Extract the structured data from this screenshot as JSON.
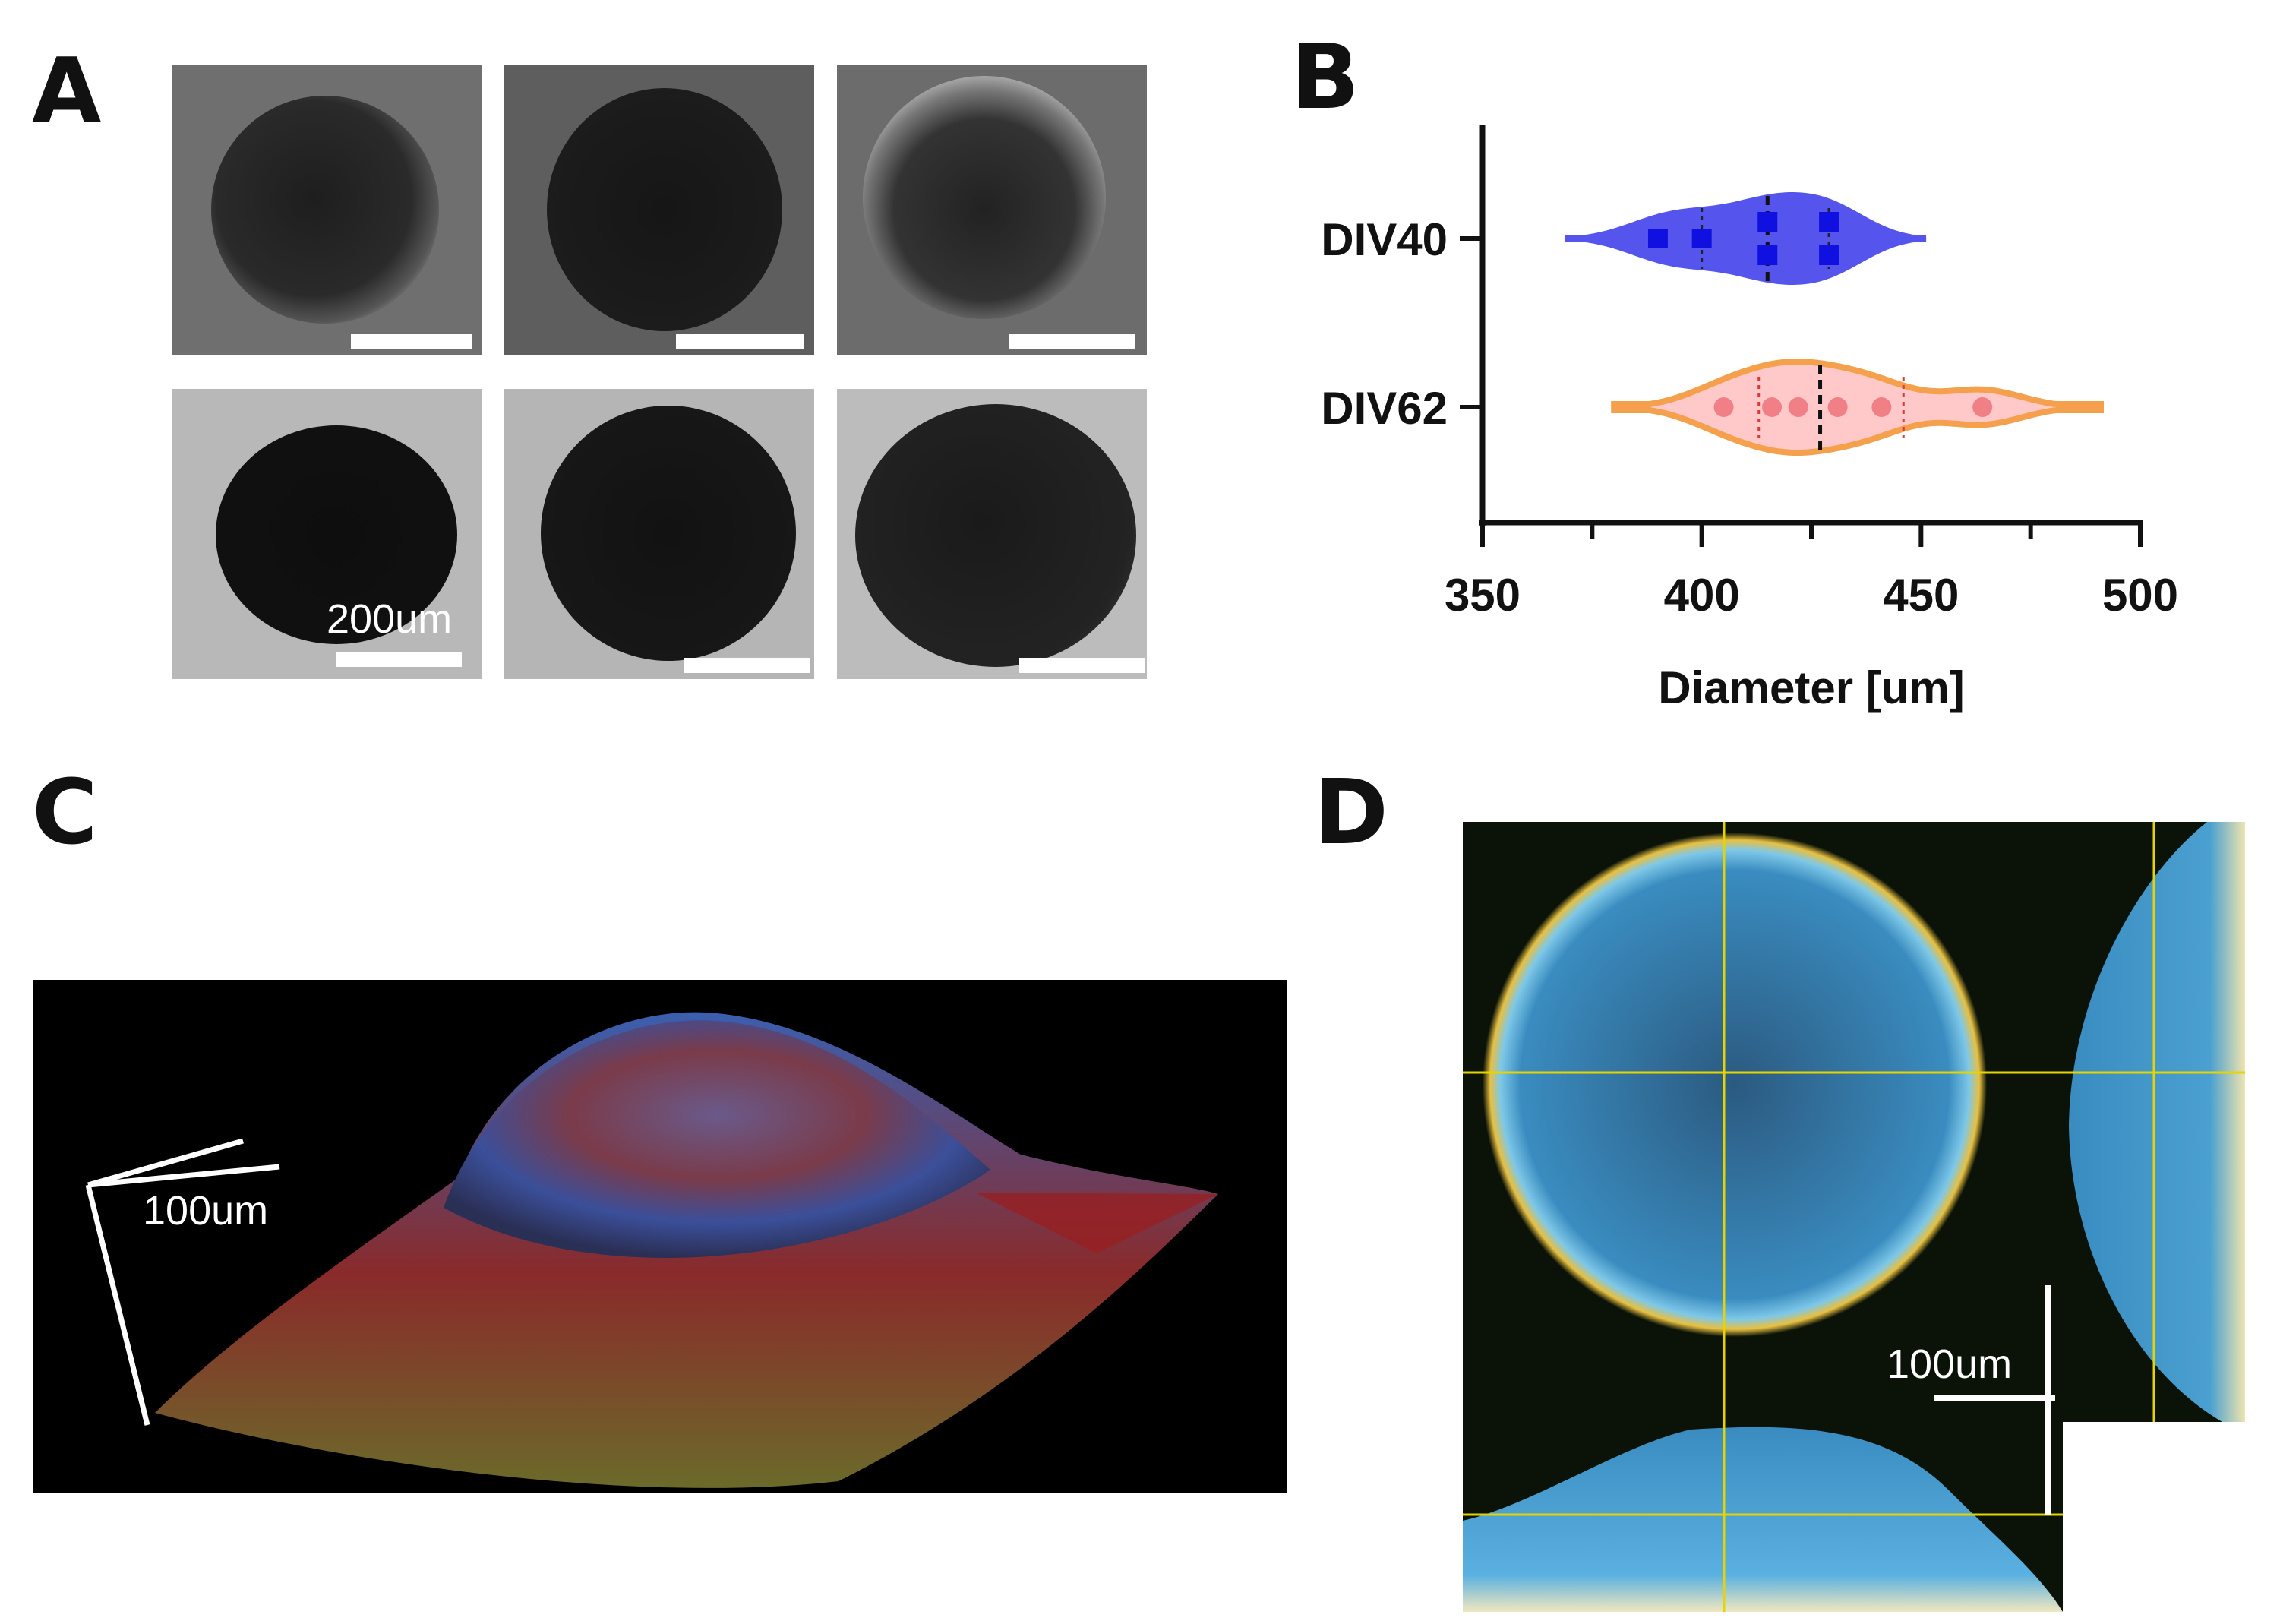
{
  "panels": {
    "a": {
      "letter": "A",
      "scale_label": "200um"
    },
    "b": {
      "letter": "B"
    },
    "c": {
      "letter": "C",
      "scale_label": "100um"
    },
    "d": {
      "letter": "D",
      "scale_label": "100um"
    }
  },
  "chart_data": {
    "type": "violin",
    "orientation": "horizontal",
    "categories": [
      "DIV40",
      "DIV62"
    ],
    "xlabel": "Diameter [um]",
    "ylabel": "",
    "xlim": [
      350,
      500
    ],
    "xticks": [
      350,
      400,
      450,
      500
    ],
    "series": [
      {
        "name": "DIV40",
        "color": "#5555ee",
        "marker_color": "#1010e0",
        "marker": "square",
        "range": [
          369,
          451
        ],
        "median": 415,
        "quartiles": [
          400,
          429
        ],
        "points": [
          390,
          400,
          415,
          415,
          429,
          429
        ]
      },
      {
        "name": "DIV62",
        "color": "#f4a04c",
        "fill": "#ffc9c9",
        "marker_color": "#f07f86",
        "marker": "circle",
        "range": [
          380,
          491
        ],
        "median": 427,
        "quartiles": [
          413,
          446
        ],
        "points": [
          405,
          416,
          422,
          431,
          441,
          464
        ]
      }
    ]
  }
}
